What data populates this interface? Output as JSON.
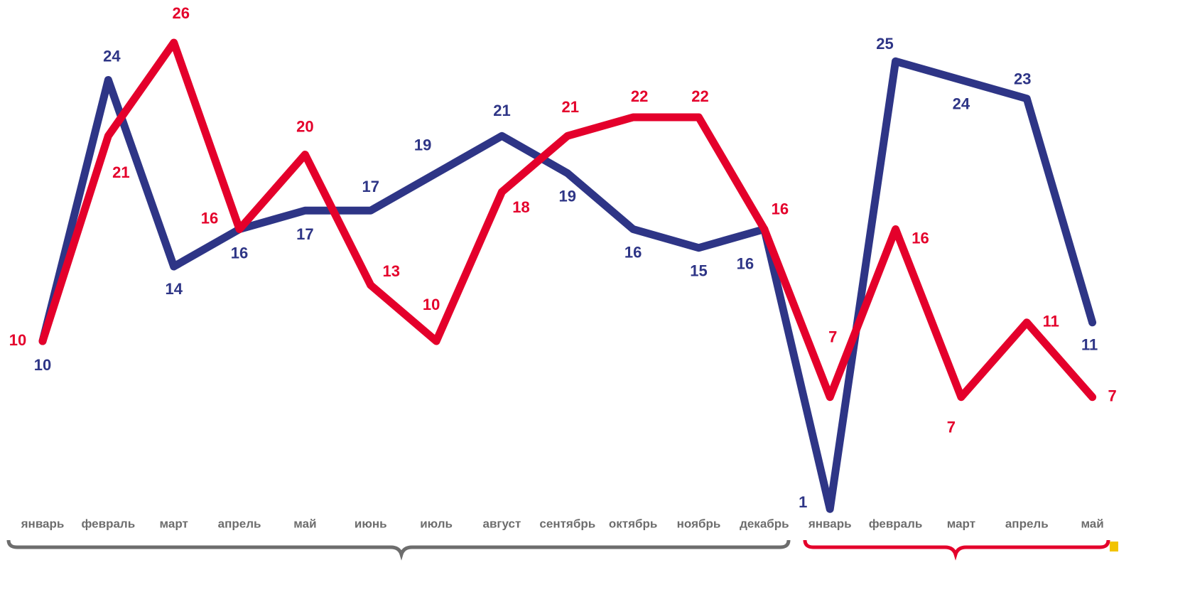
{
  "chart_data": {
    "type": "line",
    "categories": [
      "январь",
      "февраль",
      "март",
      "апрель",
      "май",
      "июнь",
      "июль",
      "август",
      "сентябрь",
      "октябрь",
      "ноябрь",
      "декабрь",
      "январь",
      "февраль",
      "март",
      "апрель",
      "май"
    ],
    "series": [
      {
        "color": "#2e3586",
        "values": [
          10,
          24,
          14,
          16,
          17,
          17,
          19,
          21,
          19,
          16,
          15,
          16,
          1,
          25,
          24,
          23,
          11
        ]
      },
      {
        "color": "#e4002b",
        "values": [
          10,
          21,
          26,
          16,
          20,
          13,
          10,
          18,
          21,
          22,
          22,
          16,
          7,
          16,
          7,
          11,
          7
        ]
      }
    ],
    "ylim": [
      0,
      28
    ]
  }
}
